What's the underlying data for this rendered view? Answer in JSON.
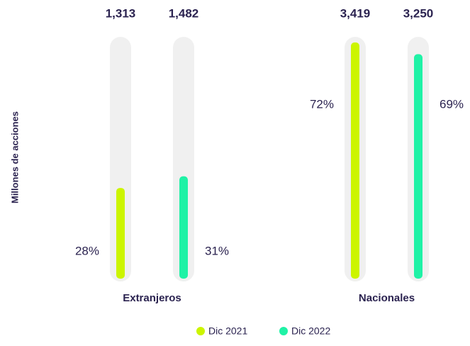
{
  "chart_data": {
    "type": "bar",
    "y_label": "Millones de acciones",
    "categories": [
      "Extranjeros",
      "Nacionales"
    ],
    "series": [
      {
        "name": "Dic 2021",
        "color": "#ccf500",
        "values": [
          1313,
          3419
        ],
        "value_labels": [
          "1,313",
          "3,419"
        ],
        "percent_labels": [
          "28%",
          "72%"
        ]
      },
      {
        "name": "Dic 2022",
        "color": "#1ff2a6",
        "values": [
          1482,
          3250
        ],
        "value_labels": [
          "1,482",
          "3,250"
        ],
        "percent_labels": [
          "31%",
          "69%"
        ]
      }
    ],
    "ylim": [
      0,
      3500
    ]
  }
}
